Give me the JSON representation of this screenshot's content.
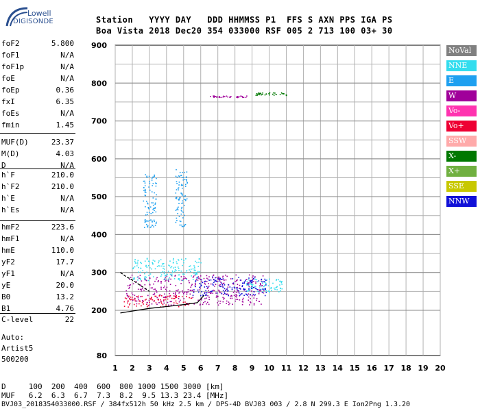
{
  "logo": {
    "line1": "Lowell",
    "line2": "DIGISONDE"
  },
  "header": {
    "row1": "Station   YYYY DAY   DDD HHMMSS P1  FFS S AXN PPS IGA PS",
    "row2": "Boa Vista 2018 Dec20 354 033000 RSF 005 2 713 100 03+ 30"
  },
  "params": [
    {
      "name": "foF2",
      "value": "5.800"
    },
    {
      "name": "foF1",
      "value": "N/A"
    },
    {
      "name": "foF1p",
      "value": "N/A"
    },
    {
      "name": "foE",
      "value": "N/A"
    },
    {
      "name": "foEp",
      "value": "0.36"
    },
    {
      "name": "fxI",
      "value": "6.35"
    },
    {
      "name": "foEs",
      "value": "N/A"
    },
    {
      "name": "fmin",
      "value": "1.45"
    },
    {
      "name": "MUF(D)",
      "value": "23.37"
    },
    {
      "name": "M(D)",
      "value": "4.03"
    },
    {
      "name": "D",
      "value": "N/A"
    },
    {
      "name": "h`F",
      "value": "210.0"
    },
    {
      "name": "h`F2",
      "value": "210.0"
    },
    {
      "name": "h`E",
      "value": "N/A"
    },
    {
      "name": "h`Es",
      "value": "N/A"
    },
    {
      "name": "hmF2",
      "value": "223.6"
    },
    {
      "name": "hmF1",
      "value": "N/A"
    },
    {
      "name": "hmE",
      "value": "110.0"
    },
    {
      "name": "yF2",
      "value": "17.7"
    },
    {
      "name": "yF1",
      "value": "N/A"
    },
    {
      "name": "yE",
      "value": "20.0"
    },
    {
      "name": "B0",
      "value": "13.2"
    },
    {
      "name": "B1",
      "value": "4.76"
    },
    {
      "name": "C-level",
      "value": "22"
    }
  ],
  "auto": {
    "line1": "Auto:",
    "line2": "Artist5",
    "line3": "500200"
  },
  "bottom": {
    "d_row": "D     100  200  400  600  800 1000 1500 3000 [km]",
    "muf_row": "MUF   6.2  6.3  6.7  7.3  8.2  9.5 13.3 23.4 [MHz]",
    "footer": "BVJ03_2018354033000.RSF / 384fx512h 50 kHz 2.5 km / DPS-4D BVJ03 003 / 2.8 N 299.3 E Ion2Png 1.3.20"
  },
  "legend": [
    {
      "label": "NoVal",
      "color": "#808080",
      "text_color": "#ffffff"
    },
    {
      "label": "NNE",
      "color": "#33ddee",
      "text_color": "#ffffff"
    },
    {
      "label": "E",
      "color": "#1ea0f0",
      "text_color": "#ffffff"
    },
    {
      "label": "W",
      "color": "#a0009a",
      "text_color": "#ffffff"
    },
    {
      "label": "Vo-",
      "color": "#ff33b0",
      "text_color": "#ffffff"
    },
    {
      "label": "Vo+",
      "color": "#ee0033",
      "text_color": "#ffffff"
    },
    {
      "label": "SSW",
      "color": "#ffaaaa",
      "text_color": "#ffffff"
    },
    {
      "label": "X-",
      "color": "#007800",
      "text_color": "#ffffff"
    },
    {
      "label": "X+",
      "color": "#70b040",
      "text_color": "#ffffff"
    },
    {
      "label": "SSE",
      "color": "#c8c800",
      "text_color": "#ffffff"
    },
    {
      "label": "NNW",
      "color": "#1010d8",
      "text_color": "#ffffff"
    }
  ],
  "chart_data": {
    "type": "scatter",
    "title": "",
    "xlabel": "",
    "ylabel": "",
    "xlim": [
      1,
      20
    ],
    "ylim": [
      80,
      900
    ],
    "y_scale": "linear with 100 km collapse below 200",
    "x_ticks": [
      1,
      2,
      3,
      4,
      5,
      6,
      7,
      8,
      9,
      10,
      11,
      12,
      13,
      14,
      15,
      16,
      17,
      18,
      19,
      20
    ],
    "y_ticks": [
      80,
      200,
      300,
      400,
      500,
      600,
      700,
      800,
      900
    ],
    "grid": true,
    "legend_position": "right",
    "echo_clusters": [
      {
        "name": "W",
        "color": "#a0009a",
        "x_range": [
          1.6,
          9.7
        ],
        "y_range": [
          215,
          295
        ]
      },
      {
        "name": "NNE",
        "color": "#33ddee",
        "x_range": [
          2.0,
          6.0
        ],
        "y_range": [
          280,
          340
        ]
      },
      {
        "name": "NNE",
        "color": "#33ddee",
        "x_range": [
          8.6,
          10.8
        ],
        "y_range": [
          250,
          285
        ]
      },
      {
        "name": "NNW",
        "color": "#1010d8",
        "x_range": [
          5.5,
          9.8
        ],
        "y_range": [
          240,
          290
        ]
      },
      {
        "name": "E",
        "color": "#1ea0f0",
        "x_range": [
          2.6,
          3.4
        ],
        "y_range": [
          420,
          560
        ]
      },
      {
        "name": "E",
        "color": "#1ea0f0",
        "x_range": [
          4.5,
          5.2
        ],
        "y_range": [
          420,
          575
        ]
      },
      {
        "name": "X-",
        "color": "#007800",
        "x_range": [
          9.2,
          11.0
        ],
        "y_range": [
          768,
          776
        ]
      },
      {
        "name": "W",
        "color": "#a0009a",
        "x_range": [
          6.5,
          8.7
        ],
        "y_range": [
          763,
          768
        ]
      },
      {
        "name": "Vo+",
        "color": "#ee0033",
        "x_range": [
          1.5,
          5.5
        ],
        "y_range": [
          210,
          240
        ]
      }
    ],
    "trace_upper": {
      "x": [
        1.3,
        1.6,
        2.0,
        2.5,
        3.0
      ],
      "y": [
        300,
        290,
        280,
        265,
        250
      ]
    },
    "trace_lower": {
      "x": [
        1.3,
        2.0,
        3.0,
        4.0,
        5.0,
        5.8,
        6.2
      ],
      "y": [
        193,
        198,
        205,
        210,
        215,
        220,
        240
      ]
    }
  }
}
